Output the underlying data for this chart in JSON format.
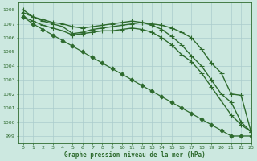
{
  "background_color": "#cce8e0",
  "grid_color": "#aacccc",
  "line_color": "#2d6a2d",
  "title": "Graphe pression niveau de la mer (hPa)",
  "xlim": [
    -0.5,
    23
  ],
  "ylim": [
    998.5,
    1008.5
  ],
  "yticks": [
    999,
    1000,
    1001,
    1002,
    1003,
    1004,
    1005,
    1006,
    1007,
    1008
  ],
  "xticks": [
    0,
    1,
    2,
    3,
    4,
    5,
    6,
    7,
    8,
    9,
    10,
    11,
    12,
    13,
    14,
    15,
    16,
    17,
    18,
    19,
    20,
    21,
    22,
    23
  ],
  "series": [
    {
      "x": [
        0,
        1,
        2,
        3,
        4,
        5,
        6,
        7,
        8,
        9,
        10,
        11,
        12,
        13,
        14,
        15,
        16,
        17,
        18,
        19,
        20,
        21,
        22,
        23
      ],
      "y": [
        1007.8,
        1007.5,
        1007.3,
        1007.1,
        1007.0,
        1006.8,
        1006.7,
        1006.8,
        1006.9,
        1007.0,
        1007.1,
        1007.2,
        1007.1,
        1007.0,
        1006.9,
        1006.7,
        1006.4,
        1006.0,
        1005.2,
        1004.2,
        1003.5,
        1002.0,
        1001.9,
        999.3
      ],
      "marker": "+",
      "markersize": 4,
      "linewidth": 1.0
    },
    {
      "x": [
        0,
        1,
        2,
        3,
        4,
        5,
        6,
        7,
        8,
        9,
        10,
        11,
        12,
        13,
        14,
        15,
        16,
        17,
        18,
        19,
        20,
        21,
        22,
        23
      ],
      "y": [
        1008.0,
        1007.5,
        1007.2,
        1007.0,
        1006.8,
        1006.3,
        1006.4,
        1006.6,
        1006.7,
        1006.8,
        1006.9,
        1007.0,
        1007.1,
        1006.9,
        1006.6,
        1006.1,
        1005.5,
        1004.7,
        1004.0,
        1003.0,
        1002.0,
        1001.4,
        1000.0,
        999.3
      ],
      "marker": "+",
      "markersize": 4,
      "linewidth": 1.0
    },
    {
      "x": [
        0,
        1,
        2,
        3,
        4,
        5,
        6,
        7,
        8,
        9,
        10,
        11,
        12,
        13,
        14,
        15,
        16,
        17,
        18,
        19,
        20,
        21,
        22,
        23
      ],
      "y": [
        1007.5,
        1007.2,
        1006.9,
        1006.7,
        1006.5,
        1006.2,
        1006.3,
        1006.4,
        1006.5,
        1006.5,
        1006.6,
        1006.7,
        1006.6,
        1006.4,
        1006.0,
        1005.5,
        1004.8,
        1004.3,
        1003.5,
        1002.5,
        1001.5,
        1000.5,
        999.8,
        999.3
      ],
      "marker": "+",
      "markersize": 4,
      "linewidth": 1.0
    },
    {
      "x": [
        0,
        1,
        2,
        3,
        4,
        5,
        6,
        7,
        8,
        9,
        10,
        11,
        12,
        13,
        14,
        15,
        16,
        17,
        18,
        19,
        20,
        21,
        22,
        23
      ],
      "y": [
        1007.5,
        1007.0,
        1006.6,
        1006.2,
        1005.8,
        1005.4,
        1005.0,
        1004.6,
        1004.2,
        1003.8,
        1003.4,
        1003.0,
        1002.6,
        1002.2,
        1001.8,
        1001.4,
        1001.0,
        1000.6,
        1000.2,
        999.8,
        999.4,
        999.0,
        999.0,
        999.0
      ],
      "marker": "D",
      "markersize": 2.5,
      "linewidth": 0.9
    }
  ]
}
